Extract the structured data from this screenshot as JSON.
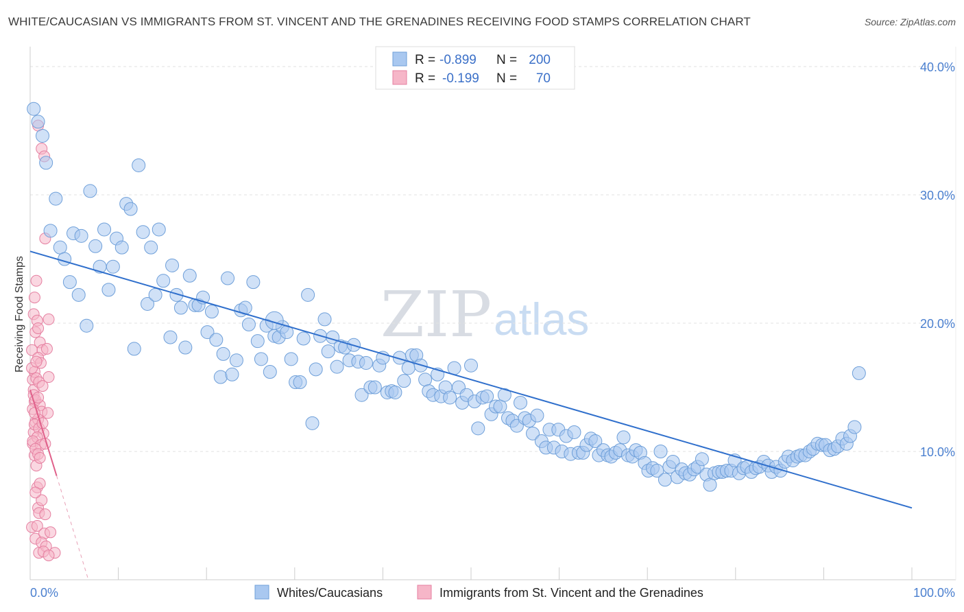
{
  "title": "WHITE/CAUCASIAN VS IMMIGRANTS FROM ST. VINCENT AND THE GRENADINES RECEIVING FOOD STAMPS CORRELATION CHART",
  "source": "Source: ZipAtlas.com",
  "watermark": {
    "zip": "ZIP",
    "atlas": "atlas"
  },
  "legend": {
    "rows": [
      {
        "r_label": "R = ",
        "r_value": "-0.899",
        "n_label": "N = ",
        "n_value": "200",
        "color": "#a9c8f0"
      },
      {
        "r_label": "R = ",
        "r_value": "-0.199",
        "n_label": "N = ",
        "n_value": "70",
        "color": "#f6b6c8"
      }
    ]
  },
  "bottom_legend": [
    {
      "label": "Whites/Caucasians",
      "color": "#a9c8f0"
    },
    {
      "label": "Immigrants from St. Vincent and the Grenadines",
      "color": "#f6b6c8"
    }
  ],
  "chart_data": {
    "type": "scatter",
    "title": "WHITE/CAUCASIAN VS IMMIGRANTS FROM ST. VINCENT AND THE GRENADINES RECEIVING FOOD STAMPS CORRELATION CHART",
    "xlabel": "",
    "ylabel": "Receiving Food Stamps",
    "xlim": [
      0,
      100
    ],
    "ylim": [
      0,
      40
    ],
    "x_ticks": [
      "0.0%",
      "100.0%"
    ],
    "y_ticks": [
      {
        "value": 10,
        "label": "10.0%"
      },
      {
        "value": 20,
        "label": "20.0%"
      },
      {
        "value": 30,
        "label": "30.0%"
      },
      {
        "value": 40,
        "label": "40.0%"
      }
    ],
    "grid": "horizontal dashed",
    "legend_position": "top-center",
    "series": [
      {
        "name": "Whites/Caucasians",
        "color": "#a9c8f0",
        "stroke": "#6e9fd9",
        "trend": {
          "x": [
            0,
            100
          ],
          "y": [
            25.6,
            5.6
          ],
          "color": "#2f6fcc"
        },
        "points": [
          [
            0.4,
            36.7
          ],
          [
            0.9,
            35.7
          ],
          [
            1.4,
            34.6
          ],
          [
            1.8,
            32.5
          ],
          [
            2.9,
            29.7
          ],
          [
            2.3,
            27.2
          ],
          [
            3.4,
            25.9
          ],
          [
            3.9,
            25.0
          ],
          [
            4.5,
            23.2
          ],
          [
            4.9,
            27.0
          ],
          [
            5.5,
            22.2
          ],
          [
            5.8,
            26.8
          ],
          [
            6.4,
            19.8
          ],
          [
            6.8,
            30.3
          ],
          [
            7.4,
            26.0
          ],
          [
            7.9,
            24.4
          ],
          [
            8.4,
            27.3
          ],
          [
            8.9,
            22.6
          ],
          [
            9.4,
            24.4
          ],
          [
            9.8,
            26.6
          ],
          [
            10.4,
            25.9
          ],
          [
            10.9,
            29.3
          ],
          [
            11.4,
            28.9
          ],
          [
            11.8,
            18.0
          ],
          [
            12.3,
            32.3
          ],
          [
            12.8,
            27.1
          ],
          [
            13.3,
            21.5
          ],
          [
            13.7,
            25.9
          ],
          [
            14.2,
            22.2
          ],
          [
            14.6,
            27.3
          ],
          [
            15.1,
            23.3
          ],
          [
            15.9,
            18.9
          ],
          [
            16.1,
            24.5
          ],
          [
            16.6,
            22.2
          ],
          [
            17.1,
            21.2
          ],
          [
            17.6,
            18.1
          ],
          [
            18.1,
            23.7
          ],
          [
            18.7,
            21.4
          ],
          [
            19.1,
            21.4
          ],
          [
            19.6,
            22.0
          ],
          [
            20.1,
            19.3
          ],
          [
            20.6,
            20.9
          ],
          [
            21.1,
            18.7
          ],
          [
            21.6,
            15.8
          ],
          [
            21.9,
            17.6
          ],
          [
            22.4,
            23.5
          ],
          [
            22.9,
            16.0
          ],
          [
            23.4,
            17.1
          ],
          [
            23.9,
            21.0
          ],
          [
            24.4,
            21.2
          ],
          [
            24.8,
            19.9
          ],
          [
            25.3,
            23.2
          ],
          [
            25.8,
            18.6
          ],
          [
            26.2,
            17.2
          ],
          [
            26.8,
            19.8
          ],
          [
            27.2,
            16.2
          ],
          [
            27.7,
            19.0
          ],
          [
            28.2,
            18.9
          ],
          [
            28.6,
            19.7
          ],
          [
            29.1,
            19.3
          ],
          [
            29.6,
            17.2
          ],
          [
            30.1,
            15.4
          ],
          [
            30.6,
            15.4
          ],
          [
            31.0,
            18.8
          ],
          [
            31.5,
            22.2
          ],
          [
            32.0,
            12.2
          ],
          [
            32.4,
            16.4
          ],
          [
            32.9,
            19.0
          ],
          [
            33.4,
            20.3
          ],
          [
            33.8,
            17.8
          ],
          [
            34.3,
            18.9
          ],
          [
            34.8,
            16.6
          ],
          [
            35.2,
            18.2
          ],
          [
            35.7,
            18.1
          ],
          [
            36.2,
            17.1
          ],
          [
            36.7,
            18.3
          ],
          [
            37.2,
            17.0
          ],
          [
            37.6,
            14.4
          ],
          [
            38.1,
            16.9
          ],
          [
            38.6,
            15.0
          ],
          [
            39.1,
            15.0
          ],
          [
            39.6,
            16.7
          ],
          [
            40.0,
            17.3
          ],
          [
            40.5,
            14.6
          ],
          [
            41.0,
            14.7
          ],
          [
            41.4,
            14.6
          ],
          [
            41.9,
            17.3
          ],
          [
            42.4,
            15.5
          ],
          [
            42.9,
            16.5
          ],
          [
            43.3,
            17.5
          ],
          [
            43.8,
            17.5
          ],
          [
            44.3,
            16.7
          ],
          [
            44.8,
            15.6
          ],
          [
            45.2,
            14.7
          ],
          [
            45.7,
            14.4
          ],
          [
            46.2,
            16.0
          ],
          [
            46.6,
            14.3
          ],
          [
            47.1,
            15.0
          ],
          [
            47.6,
            14.2
          ],
          [
            48.1,
            16.5
          ],
          [
            48.6,
            15.0
          ],
          [
            49.0,
            13.8
          ],
          [
            49.5,
            14.4
          ],
          [
            50.0,
            16.7
          ],
          [
            50.4,
            13.9
          ],
          [
            50.8,
            11.8
          ],
          [
            51.3,
            14.2
          ],
          [
            51.8,
            14.3
          ],
          [
            52.3,
            12.9
          ],
          [
            52.8,
            13.5
          ],
          [
            53.3,
            13.5
          ],
          [
            53.8,
            14.4
          ],
          [
            54.2,
            12.6
          ],
          [
            54.7,
            12.4
          ],
          [
            55.2,
            12.0
          ],
          [
            55.6,
            13.8
          ],
          [
            56.1,
            12.6
          ],
          [
            56.6,
            12.4
          ],
          [
            57.0,
            11.4
          ],
          [
            57.5,
            12.8
          ],
          [
            58.0,
            10.8
          ],
          [
            58.5,
            10.3
          ],
          [
            58.9,
            11.7
          ],
          [
            59.4,
            10.3
          ],
          [
            59.9,
            11.7
          ],
          [
            60.3,
            10.0
          ],
          [
            60.8,
            11.2
          ],
          [
            61.3,
            9.8
          ],
          [
            61.7,
            11.5
          ],
          [
            62.2,
            9.9
          ],
          [
            62.7,
            9.9
          ],
          [
            63.1,
            10.5
          ],
          [
            63.6,
            11.0
          ],
          [
            64.1,
            10.8
          ],
          [
            64.5,
            9.7
          ],
          [
            65.0,
            10.1
          ],
          [
            65.5,
            9.7
          ],
          [
            65.9,
            9.6
          ],
          [
            66.4,
            9.9
          ],
          [
            66.9,
            10.1
          ],
          [
            67.3,
            11.1
          ],
          [
            67.8,
            9.7
          ],
          [
            68.3,
            9.6
          ],
          [
            68.7,
            10.1
          ],
          [
            69.2,
            9.9
          ],
          [
            69.7,
            9.1
          ],
          [
            70.1,
            8.5
          ],
          [
            70.6,
            8.7
          ],
          [
            71.1,
            8.5
          ],
          [
            71.5,
            10.0
          ],
          [
            72.0,
            7.8
          ],
          [
            72.5,
            8.8
          ],
          [
            72.9,
            9.2
          ],
          [
            73.4,
            8.0
          ],
          [
            73.9,
            8.6
          ],
          [
            74.3,
            8.3
          ],
          [
            74.8,
            8.2
          ],
          [
            75.3,
            8.6
          ],
          [
            75.7,
            8.8
          ],
          [
            76.2,
            9.4
          ],
          [
            76.7,
            8.2
          ],
          [
            77.1,
            7.4
          ],
          [
            77.6,
            8.3
          ],
          [
            78.1,
            8.4
          ],
          [
            78.5,
            8.4
          ],
          [
            79.0,
            8.5
          ],
          [
            79.5,
            8.5
          ],
          [
            79.9,
            9.3
          ],
          [
            80.4,
            8.3
          ],
          [
            80.9,
            8.7
          ],
          [
            81.3,
            8.8
          ],
          [
            81.8,
            8.4
          ],
          [
            82.3,
            8.7
          ],
          [
            82.7,
            8.8
          ],
          [
            83.2,
            9.2
          ],
          [
            83.7,
            8.9
          ],
          [
            84.1,
            8.4
          ],
          [
            84.6,
            8.8
          ],
          [
            85.1,
            8.5
          ],
          [
            85.6,
            9.2
          ],
          [
            86.0,
            9.6
          ],
          [
            86.5,
            9.3
          ],
          [
            87.0,
            9.6
          ],
          [
            87.4,
            9.7
          ],
          [
            87.9,
            9.7
          ],
          [
            88.4,
            10.0
          ],
          [
            88.8,
            10.2
          ],
          [
            89.3,
            10.6
          ],
          [
            89.8,
            10.5
          ],
          [
            90.2,
            10.5
          ],
          [
            90.7,
            10.1
          ],
          [
            91.2,
            10.2
          ],
          [
            91.6,
            10.4
          ],
          [
            92.1,
            11.0
          ],
          [
            92.6,
            10.6
          ],
          [
            93.0,
            11.2
          ],
          [
            93.5,
            11.9
          ],
          [
            94.0,
            16.1
          ],
          [
            27.7,
            20.2
          ]
        ]
      },
      {
        "name": "Immigrants from St. Vincent and the Grenadines",
        "color": "#f6b6c8",
        "stroke": "#e57fa0",
        "trend": {
          "x": [
            0,
            3.0
          ],
          "y": [
            14.8,
            8.1
          ],
          "color": "#e0608a"
        },
        "trend_dashed": {
          "x": [
            3.0,
            6.6
          ],
          "y": [
            8.1,
            0.0
          ],
          "color": "#e8a0b6"
        },
        "points": [
          [
            0.2,
            17.9
          ],
          [
            0.3,
            15.6
          ],
          [
            0.4,
            14.8
          ],
          [
            0.5,
            13.9
          ],
          [
            0.6,
            12.3
          ],
          [
            0.4,
            11.5
          ],
          [
            0.3,
            10.6
          ],
          [
            0.5,
            9.7
          ],
          [
            0.7,
            8.9
          ],
          [
            0.8,
            7.2
          ],
          [
            0.9,
            5.6
          ],
          [
            0.2,
            4.1
          ],
          [
            0.6,
            3.2
          ],
          [
            1.0,
            2.1
          ],
          [
            0.9,
            35.4
          ],
          [
            1.3,
            33.6
          ],
          [
            1.6,
            33.0
          ],
          [
            1.7,
            26.6
          ],
          [
            0.7,
            23.3
          ],
          [
            0.5,
            22.0
          ],
          [
            0.4,
            20.7
          ],
          [
            0.8,
            20.2
          ],
          [
            0.6,
            19.3
          ],
          [
            0.9,
            19.6
          ],
          [
            1.1,
            18.5
          ],
          [
            1.4,
            17.9
          ],
          [
            0.9,
            17.3
          ],
          [
            1.2,
            16.9
          ],
          [
            0.5,
            16.2
          ],
          [
            0.7,
            15.7
          ],
          [
            1.0,
            15.4
          ],
          [
            1.4,
            15.1
          ],
          [
            0.4,
            14.4
          ],
          [
            0.6,
            14.0
          ],
          [
            1.1,
            13.6
          ],
          [
            1.3,
            13.1
          ],
          [
            0.9,
            12.5
          ],
          [
            0.5,
            12.1
          ],
          [
            1.0,
            11.8
          ],
          [
            1.5,
            11.4
          ],
          [
            0.8,
            11.1
          ],
          [
            0.3,
            10.8
          ],
          [
            1.2,
            10.5
          ],
          [
            0.6,
            10.2
          ],
          [
            0.9,
            9.8
          ],
          [
            1.1,
            7.5
          ],
          [
            1.3,
            6.2
          ],
          [
            1.0,
            5.2
          ],
          [
            0.8,
            4.2
          ],
          [
            1.6,
            3.6
          ],
          [
            1.3,
            2.9
          ],
          [
            1.8,
            2.6
          ],
          [
            1.5,
            2.2
          ],
          [
            2.3,
            3.7
          ],
          [
            2.8,
            2.1
          ],
          [
            1.9,
            18.0
          ],
          [
            2.1,
            20.3
          ],
          [
            2.0,
            13.0
          ],
          [
            1.7,
            10.6
          ],
          [
            2.1,
            15.8
          ],
          [
            0.3,
            13.3
          ],
          [
            0.2,
            16.5
          ],
          [
            0.7,
            17.0
          ],
          [
            1.4,
            12.2
          ],
          [
            0.9,
            14.2
          ],
          [
            0.5,
            13.0
          ],
          [
            1.1,
            9.5
          ],
          [
            0.6,
            6.8
          ],
          [
            1.7,
            5.1
          ],
          [
            2.1,
            1.9
          ]
        ]
      }
    ]
  }
}
